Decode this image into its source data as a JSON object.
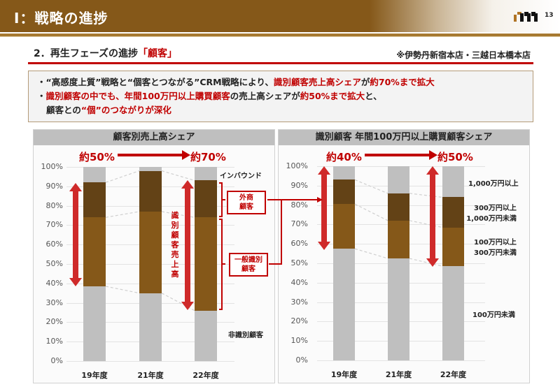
{
  "header": {
    "title": "Ⅰ：戦略の進捗",
    "page_number": "13"
  },
  "subtitle": {
    "prefix": "2．再生フェーズの進捗",
    "highlight": "「顧客」",
    "stores": "※伊勢丹新宿本店・三越日本橋本店"
  },
  "notes": {
    "line1_a": "・“高感度上質”戦略と“個客とつながる”CRM戦略により、",
    "line1_b": "識別顧客売上高シェア",
    "line1_c": "が",
    "line1_d": "約70%まで拡大",
    "line2_a": "・",
    "line2_b": "識別顧客の中でも、年間100万円以上購買顧客",
    "line2_c": "の売上高シェアが",
    "line2_d": "約50%まで拡大",
    "line2_e": "と、",
    "line3_a": "顧客との",
    "line3_b": "“個”のつながりが深化"
  },
  "colors": {
    "brand_brown": "#855819",
    "accent_red": "#c00000",
    "gray": "#bfbfbf",
    "dark_brown": "#634216",
    "mid_brown": "#855819",
    "light_brown": "#b57925"
  },
  "yticks": [
    "100%",
    "90%",
    "80%",
    "70%",
    "60%",
    "50%",
    "40%",
    "30%",
    "20%",
    "10%",
    "0%"
  ],
  "left_chart": {
    "title": "顧客別売上高シェア",
    "from_pct": "約50%",
    "to_pct": "約70%",
    "vertical_label": "識別顧客売上高",
    "box_gaisho": "外商\n顧客",
    "box_gaisho_1": "外商",
    "box_gaisho_2": "顧客",
    "box_general_1": "一般識別",
    "box_general_2": "顧客",
    "legend_inbound": "インバウンド",
    "legend_non": "非識別顧客"
  },
  "right_chart": {
    "title": "識別顧客 年間100万円以上購買顧客シェア",
    "from_pct": "約40%",
    "to_pct": "約50%",
    "legend": {
      "l1": "1,000万円以上",
      "l2a": "300万円以上",
      "l2b": "1,000万円未満",
      "l3a": "100万円以上",
      "l3b": "300万円未満",
      "l4": "100万円未満"
    }
  },
  "chart_data": [
    {
      "type": "bar",
      "stacked": true,
      "title": "顧客別売上高シェア",
      "categories": [
        "19年度",
        "21年度",
        "22年度"
      ],
      "series": [
        {
          "name": "非識別顧客",
          "values": [
            38.5,
            35,
            26
          ]
        },
        {
          "name": "一般識別顧客",
          "values": [
            35.5,
            42,
            48
          ]
        },
        {
          "name": "外商顧客",
          "values": [
            18,
            21,
            19
          ]
        },
        {
          "name": "インバウンド",
          "values": [
            8,
            2,
            7
          ]
        }
      ],
      "ylim": [
        0,
        100
      ],
      "yunit": "%",
      "annotations": [
        "約50% → 約70%",
        "識別顧客売上高"
      ]
    },
    {
      "type": "bar",
      "stacked": true,
      "title": "識別顧客 年間100万円以上購買顧客シェア",
      "categories": [
        "19年度",
        "21年度",
        "22年度"
      ],
      "series": [
        {
          "name": "100万円未満",
          "values": [
            57.5,
            52.5,
            48.5
          ]
        },
        {
          "name": "100万円以上300万円未満",
          "values": [
            23,
            19.5,
            20
          ]
        },
        {
          "name": "300万円以上1,000万円未満",
          "values": [
            12.5,
            14,
            15.5
          ]
        },
        {
          "name": "1,000万円以上",
          "values": [
            7,
            14,
            16
          ]
        }
      ],
      "ylim": [
        0,
        100
      ],
      "yunit": "%",
      "annotations": [
        "約40% → 約50%"
      ]
    }
  ]
}
